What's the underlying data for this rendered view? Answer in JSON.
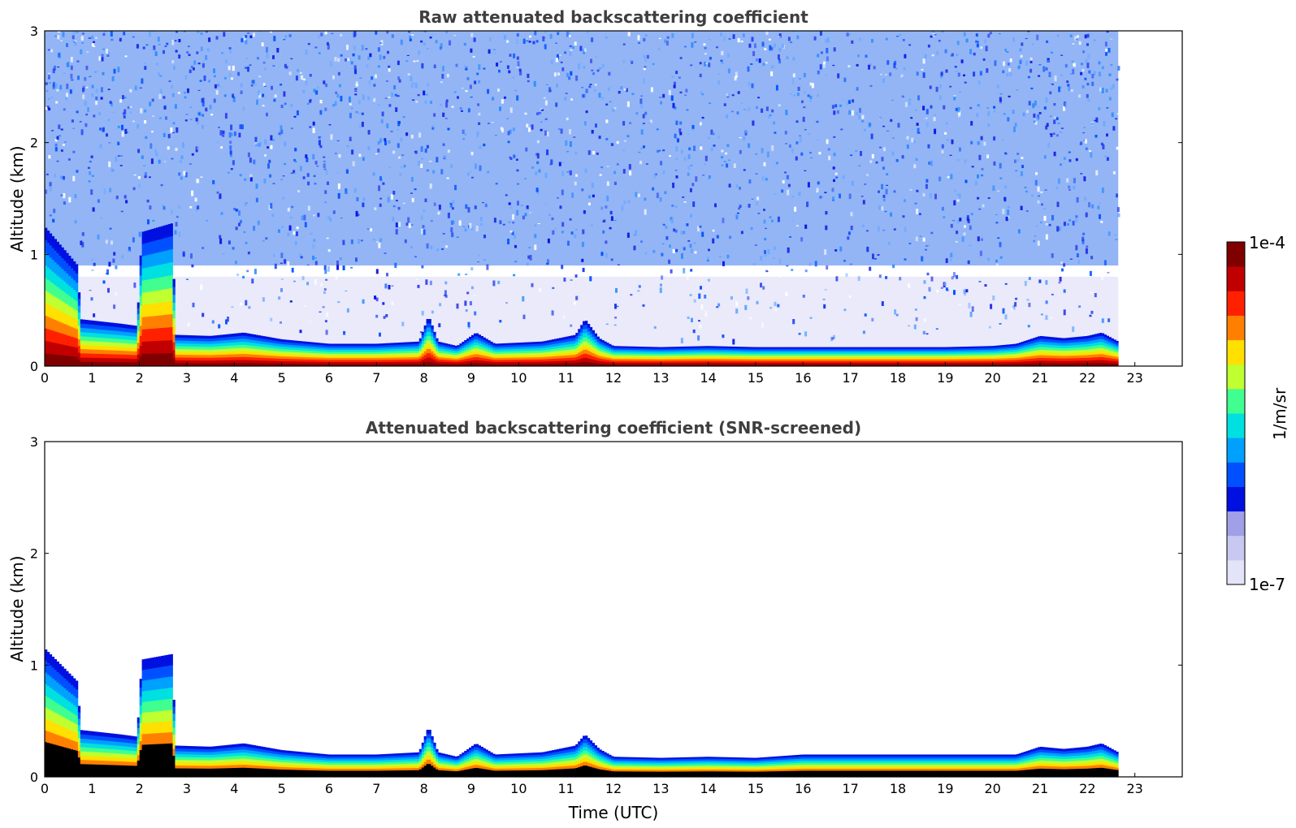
{
  "chart_data": [
    {
      "type": "heatmap",
      "title": "Raw attenuated backscattering coefficient",
      "xlabel": "",
      "ylabel": "Altitude (km)",
      "xlim": [
        0,
        24
      ],
      "ylim": [
        0,
        3
      ],
      "x_ticks": [
        "0",
        "1",
        "2",
        "3",
        "4",
        "5",
        "6",
        "7",
        "8",
        "9",
        "10",
        "11",
        "12",
        "13",
        "14",
        "15",
        "16",
        "17",
        "18",
        "19",
        "20",
        "21",
        "22",
        "23"
      ],
      "y_ticks": [
        "0",
        "1",
        "2",
        "3"
      ],
      "data_end_hour": 22.65,
      "variant": "raw",
      "boundary_layer_top_km": {
        "hours": [
          0,
          0.7,
          0.75,
          1.6,
          1.95,
          2.05,
          2.7,
          2.75,
          3.5,
          4.2,
          5,
          6,
          7,
          7.9,
          8.1,
          8.3,
          8.7,
          9.1,
          9.5,
          10.5,
          11.2,
          11.4,
          11.7,
          12,
          13,
          14,
          15,
          16,
          17,
          18,
          19,
          20,
          20.5,
          21,
          21.5,
          22,
          22.3,
          22.65
        ],
        "km": [
          1.25,
          0.9,
          0.42,
          0.38,
          0.36,
          1.2,
          1.28,
          0.28,
          0.27,
          0.3,
          0.24,
          0.2,
          0.2,
          0.22,
          0.45,
          0.22,
          0.18,
          0.3,
          0.2,
          0.22,
          0.28,
          0.42,
          0.25,
          0.18,
          0.17,
          0.18,
          0.17,
          0.17,
          0.17,
          0.17,
          0.17,
          0.18,
          0.2,
          0.27,
          0.25,
          0.27,
          0.3,
          0.22
        ]
      },
      "colorbar": {
        "label": "1/m/sr",
        "max_label": "1e-4",
        "min_label": "1e-7",
        "scale": "log"
      }
    },
    {
      "type": "heatmap",
      "title": "Attenuated backscattering coefficient (SNR-screened)",
      "xlabel": "Time (UTC)",
      "ylabel": "Altitude (km)",
      "xlim": [
        0,
        24
      ],
      "ylim": [
        0,
        3
      ],
      "x_ticks": [
        "0",
        "1",
        "2",
        "3",
        "4",
        "5",
        "6",
        "7",
        "8",
        "9",
        "10",
        "11",
        "12",
        "13",
        "14",
        "15",
        "16",
        "17",
        "18",
        "19",
        "20",
        "21",
        "22",
        "23"
      ],
      "y_ticks": [
        "0",
        "1",
        "2",
        "3"
      ],
      "data_end_hour": 22.65,
      "variant": "screened",
      "boundary_layer_top_km": {
        "hours": [
          0,
          0.7,
          0.75,
          1.6,
          1.95,
          2.05,
          2.7,
          2.75,
          3.5,
          4.2,
          5,
          6,
          7,
          7.9,
          8.1,
          8.3,
          8.7,
          9.1,
          9.5,
          10.5,
          11.2,
          11.4,
          11.7,
          12,
          13,
          14,
          15,
          16,
          17,
          18,
          19,
          20,
          20.5,
          21,
          21.5,
          22,
          22.3,
          22.65
        ],
        "km": [
          1.15,
          0.85,
          0.42,
          0.38,
          0.36,
          1.05,
          1.1,
          0.28,
          0.27,
          0.3,
          0.24,
          0.2,
          0.2,
          0.22,
          0.45,
          0.22,
          0.18,
          0.3,
          0.2,
          0.22,
          0.28,
          0.38,
          0.25,
          0.18,
          0.17,
          0.18,
          0.17,
          0.2,
          0.2,
          0.2,
          0.2,
          0.2,
          0.2,
          0.27,
          0.25,
          0.27,
          0.3,
          0.22
        ]
      },
      "colorbar": {
        "label": "1/m/sr",
        "max_label": "1e-4",
        "min_label": "1e-7",
        "scale": "log"
      }
    }
  ],
  "colors": {
    "title_text": "#3f3f3f",
    "colormap": [
      "#e4e4f8",
      "#c8c8f0",
      "#a0a0e8",
      "#0010e0",
      "#0050ff",
      "#00a0ff",
      "#00e0e0",
      "#40ff90",
      "#c0ff30",
      "#ffe000",
      "#ff8000",
      "#ff2000",
      "#c00000",
      "#800000"
    ],
    "screened_near_ground": "#000000"
  }
}
